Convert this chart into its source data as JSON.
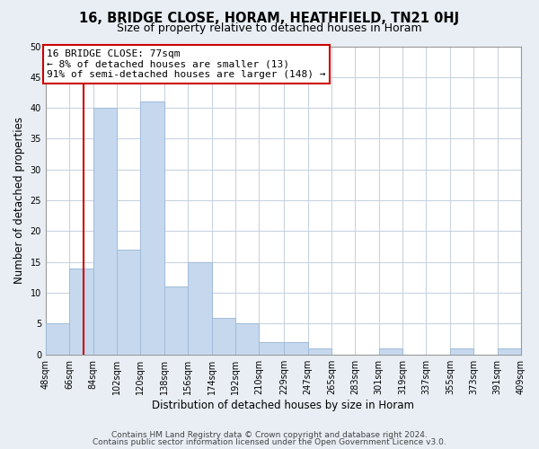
{
  "title": "16, BRIDGE CLOSE, HORAM, HEATHFIELD, TN21 0HJ",
  "subtitle": "Size of property relative to detached houses in Horam",
  "xlabel": "Distribution of detached houses by size in Horam",
  "ylabel": "Number of detached properties",
  "bar_color": "#c5d8ed",
  "bar_edge_color": "#a0bbda",
  "property_line_color": "#cc0000",
  "property_value": 77,
  "annotation_line1": "16 BRIDGE CLOSE: 77sqm",
  "annotation_line2": "← 8% of detached houses are smaller (13)",
  "annotation_line3": "91% of semi-detached houses are larger (148) →",
  "annotation_box_color": "#ffffff",
  "annotation_box_edge_color": "#cc0000",
  "bins": [
    48,
    66,
    84,
    102,
    120,
    138,
    156,
    174,
    192,
    210,
    229,
    247,
    265,
    283,
    301,
    319,
    337,
    355,
    373,
    391,
    409
  ],
  "bin_labels": [
    "48sqm",
    "66sqm",
    "84sqm",
    "102sqm",
    "120sqm",
    "138sqm",
    "156sqm",
    "174sqm",
    "192sqm",
    "210sqm",
    "229sqm",
    "247sqm",
    "265sqm",
    "283sqm",
    "301sqm",
    "319sqm",
    "337sqm",
    "355sqm",
    "373sqm",
    "391sqm",
    "409sqm"
  ],
  "bar_heights": [
    5,
    14,
    40,
    17,
    41,
    11,
    15,
    6,
    5,
    2,
    2,
    1,
    0,
    0,
    1,
    0,
    0,
    1,
    0,
    1
  ],
  "ylim": [
    0,
    50
  ],
  "yticks": [
    0,
    5,
    10,
    15,
    20,
    25,
    30,
    35,
    40,
    45,
    50
  ],
  "footer_line1": "Contains HM Land Registry data © Crown copyright and database right 2024.",
  "footer_line2": "Contains public sector information licensed under the Open Government Licence v3.0.",
  "background_color": "#e8eef4",
  "plot_bg_color": "#ffffff",
  "grid_color": "#c8d4e0",
  "title_fontsize": 10.5,
  "subtitle_fontsize": 9,
  "label_fontsize": 8.5,
  "tick_fontsize": 7,
  "annotation_fontsize": 8,
  "footer_fontsize": 6.5
}
